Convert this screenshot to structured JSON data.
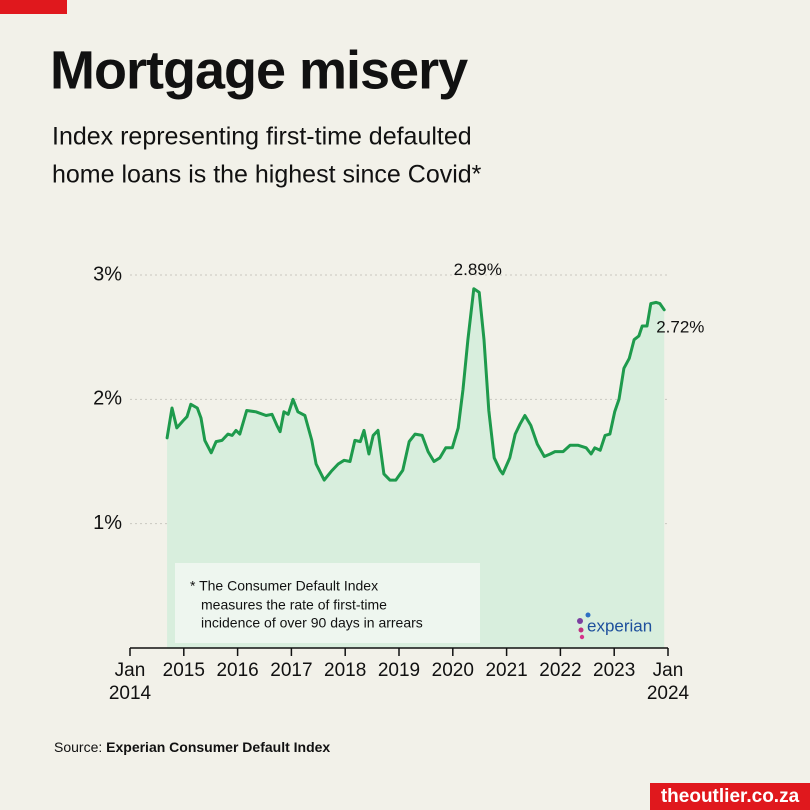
{
  "chart_data": {
    "type": "line",
    "title": "Mortgage misery",
    "subtitle": [
      "Index representing first-time defaulted",
      "home loans is the highest since Covid*"
    ],
    "x": [
      2014.69,
      2014.78,
      2014.87,
      2014.99,
      2015.06,
      2015.13,
      2015.25,
      2015.32,
      2015.39,
      2015.51,
      2015.6,
      2015.71,
      2015.82,
      2015.9,
      2015.97,
      2016.04,
      2016.17,
      2016.34,
      2016.53,
      2016.64,
      2016.73,
      2016.79,
      2016.86,
      2016.94,
      2017.03,
      2017.12,
      2017.25,
      2017.38,
      2017.46,
      2017.61,
      2017.74,
      2017.87,
      2017.98,
      2018.09,
      2018.18,
      2018.28,
      2018.35,
      2018.44,
      2018.52,
      2018.61,
      2018.72,
      2018.83,
      2018.94,
      2019.07,
      2019.19,
      2019.3,
      2019.43,
      2019.54,
      2019.65,
      2019.76,
      2019.87,
      2019.99,
      2020.1,
      2020.19,
      2020.28,
      2020.39,
      2020.49,
      2020.58,
      2020.67,
      2020.77,
      2020.88,
      2020.93,
      2021.06,
      2021.16,
      2021.25,
      2021.34,
      2021.45,
      2021.57,
      2021.7,
      2021.81,
      2021.9,
      2022.05,
      2022.18,
      2022.33,
      2022.48,
      2022.57,
      2022.64,
      2022.74,
      2022.83,
      2022.92,
      2023.01,
      2023.09,
      2023.18,
      2023.28,
      2023.37,
      2023.46,
      2023.52,
      2023.61,
      2023.68,
      2023.78,
      2023.85,
      2023.93
    ],
    "values": [
      1.69,
      1.93,
      1.77,
      1.83,
      1.86,
      1.96,
      1.93,
      1.85,
      1.67,
      1.57,
      1.66,
      1.67,
      1.72,
      1.71,
      1.75,
      1.72,
      1.91,
      1.9,
      1.87,
      1.88,
      1.79,
      1.74,
      1.9,
      1.88,
      2.0,
      1.9,
      1.87,
      1.67,
      1.48,
      1.35,
      1.42,
      1.48,
      1.51,
      1.5,
      1.67,
      1.66,
      1.75,
      1.56,
      1.71,
      1.75,
      1.4,
      1.35,
      1.35,
      1.43,
      1.66,
      1.72,
      1.71,
      1.58,
      1.5,
      1.53,
      1.61,
      1.61,
      1.77,
      2.08,
      2.48,
      2.89,
      2.86,
      2.48,
      1.91,
      1.53,
      1.43,
      1.4,
      1.53,
      1.72,
      1.8,
      1.87,
      1.79,
      1.64,
      1.54,
      1.56,
      1.58,
      1.58,
      1.63,
      1.63,
      1.61,
      1.56,
      1.61,
      1.59,
      1.71,
      1.72,
      1.9,
      2.0,
      2.25,
      2.33,
      2.48,
      2.51,
      2.59,
      2.59,
      2.77,
      2.78,
      2.77,
      2.72
    ],
    "value_labels": [
      null,
      null,
      null,
      null,
      null,
      null,
      null,
      null,
      null,
      null,
      null,
      null,
      null,
      null,
      null,
      null,
      null,
      null,
      null,
      null,
      null,
      null,
      null,
      null,
      null,
      null,
      null,
      null,
      null,
      null,
      null,
      null,
      null,
      null,
      null,
      null,
      null,
      null,
      null,
      null,
      null,
      null,
      null,
      null,
      null,
      null,
      null,
      null,
      null,
      null,
      null,
      null,
      null,
      null,
      null,
      "2.89%",
      null,
      null,
      null,
      null,
      null,
      null,
      null,
      null,
      null,
      null,
      null,
      null,
      null,
      null,
      null,
      null,
      null,
      null,
      null,
      null,
      null,
      null,
      null,
      null,
      null,
      null,
      null,
      null,
      null,
      null,
      null,
      null,
      null,
      null,
      null,
      "2.72%"
    ],
    "color": "#1e9a4c",
    "area_color": "#d8eedd",
    "xlim": [
      2014,
      2024
    ],
    "xticks": [
      {
        "value": 2014,
        "label": "Jan\n2014"
      },
      2015,
      2016,
      2017,
      2018,
      2019,
      2020,
      2021,
      2022,
      2023,
      {
        "value": 2024,
        "label": "Jan\n2024"
      }
    ],
    "ylim": [
      0,
      3
    ],
    "yticks": [
      {
        "value": 1,
        "label": "1%"
      },
      {
        "value": 2,
        "label": "2%"
      },
      {
        "value": 3,
        "label": "3%"
      }
    ],
    "grid": true,
    "note": [
      "* The Consumer Default Index",
      "measures the rate of first-time",
      "incidence of over 90 days in arrears"
    ],
    "logo": "experian",
    "source_label": "Source:",
    "source": "Experian Consumer Default Index",
    "brand": "theoutlier.co.za"
  }
}
